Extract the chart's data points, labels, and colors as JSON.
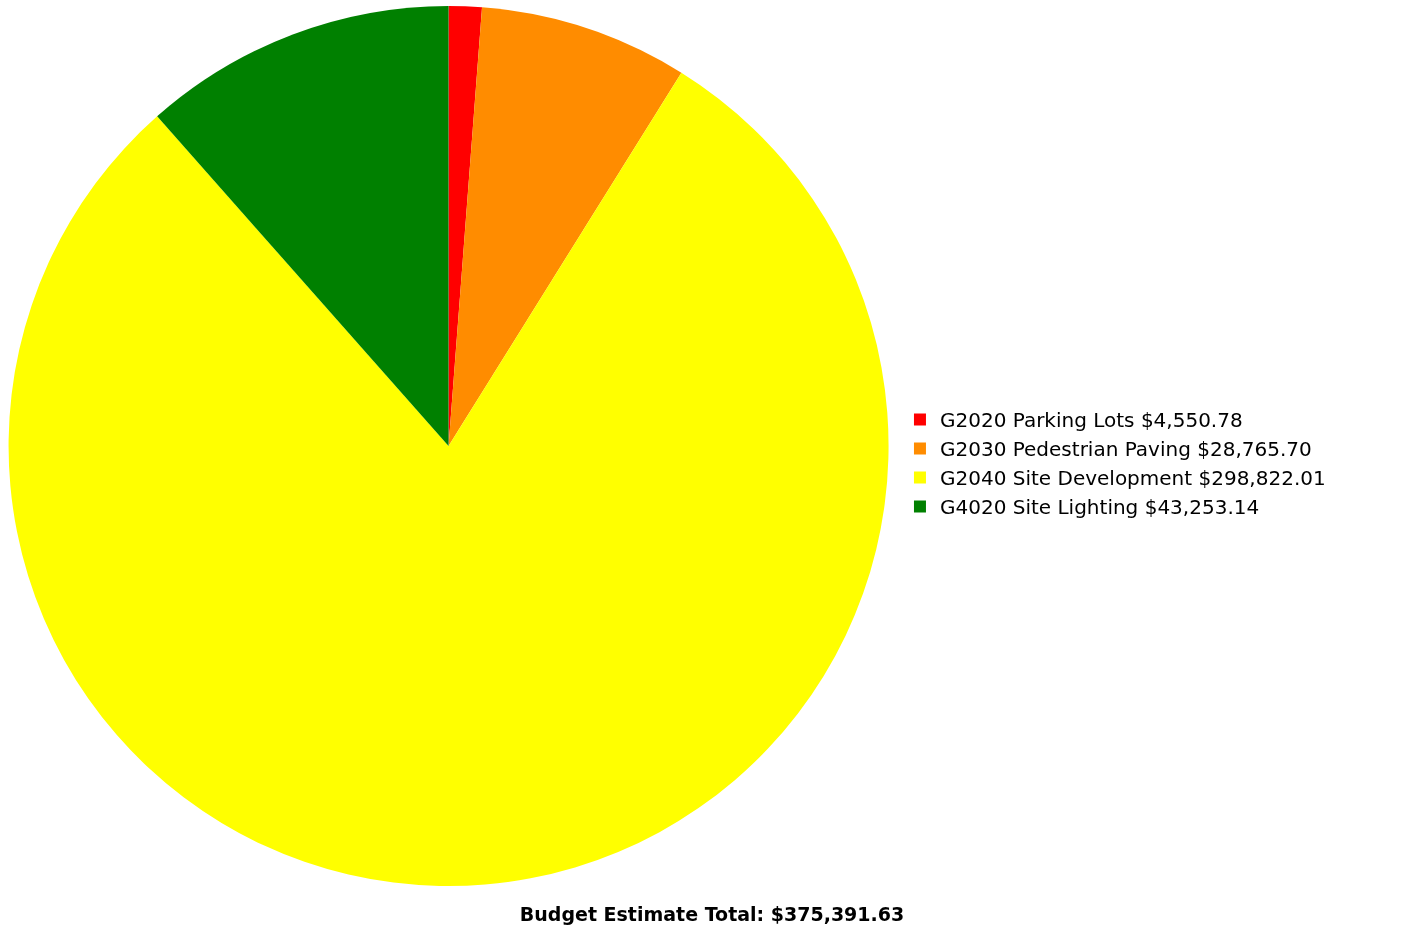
{
  "chart_data": {
    "type": "pie",
    "title": "Budget Estimate Total: $375,391.63",
    "categories": [
      "G2020 Parking Lots $4,550.78",
      "G2030 Pedestrian Paving $28,765.70",
      "G2040 Site Development $298,822.01",
      "G4020 Site Lighting $43,253.14"
    ],
    "values": [
      4550.78,
      28765.7,
      298822.01,
      43253.14
    ],
    "colors": [
      "#ff0000",
      "#ff8c00",
      "#ffff00",
      "#008000"
    ],
    "legend": "right"
  }
}
